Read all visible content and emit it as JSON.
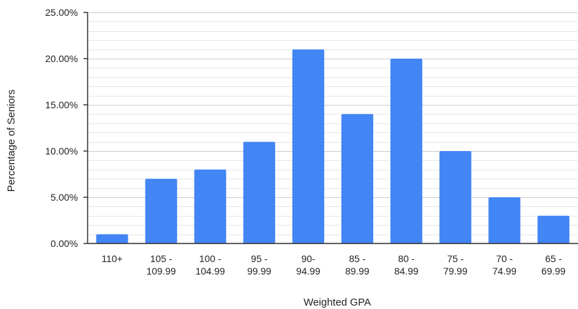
{
  "chart_data": {
    "type": "bar",
    "title": "",
    "xlabel": "Weighted GPA",
    "ylabel": "Percentage of Seniors",
    "categories": [
      [
        "110+"
      ],
      [
        "105 -",
        "109.99"
      ],
      [
        "100 -",
        "104.99"
      ],
      [
        "95 -",
        "99.99"
      ],
      [
        "90-",
        "94.99"
      ],
      [
        "85 -",
        "89.99"
      ],
      [
        "80 -",
        "84.99"
      ],
      [
        "75 -",
        "79.99"
      ],
      [
        "70 -",
        "74.99"
      ],
      [
        "65 -",
        "69.99"
      ]
    ],
    "values": [
      1,
      7,
      8,
      11,
      21,
      14,
      20,
      10,
      5,
      3
    ],
    "ylim": [
      0,
      25
    ],
    "yticks": [
      0,
      5,
      10,
      15,
      20,
      25
    ],
    "ytick_labels": [
      "0.00%",
      "5.00%",
      "10.00%",
      "15.00%",
      "20.00%",
      "25.00%"
    ],
    "minor_gridlines_per_major": 5,
    "grid": true,
    "legend": "none",
    "colors": {
      "bar": "#4285f4",
      "axis": "#333333",
      "grid_major": "#cccccc",
      "grid_minor": "#e6e6e6"
    }
  }
}
